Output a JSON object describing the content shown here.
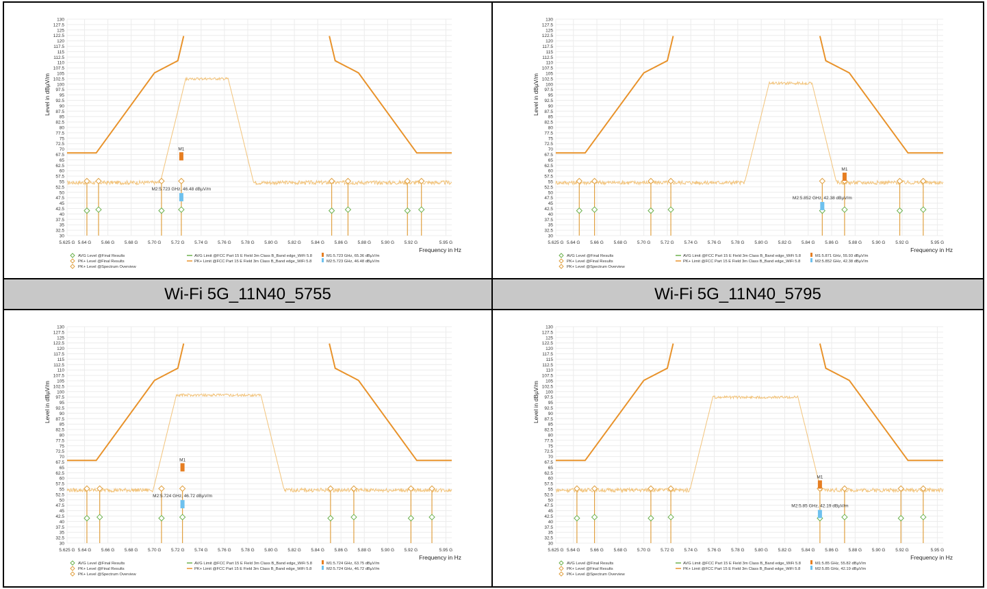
{
  "captions": [
    "Wi-Fi 5G_11N40_5755",
    "Wi-Fi 5G_11N40_5795"
  ],
  "common": {
    "ylabel": "Level in dBµV/m",
    "xlabel": "Frequency in Hz",
    "yticks": [
      "30",
      "32.5",
      "35",
      "37.5",
      "40",
      "42.5",
      "45",
      "47.5",
      "50",
      "52.5",
      "55",
      "57.5",
      "60",
      "62.5",
      "65",
      "67.5",
      "70",
      "72.5",
      "75",
      "77.5",
      "80",
      "82.5",
      "85",
      "87.5",
      "90",
      "92.5",
      "95",
      "97.5",
      "100",
      "102.5",
      "105",
      "107.5",
      "110",
      "112.5",
      "115",
      "117.5",
      "120",
      "122.5",
      "125",
      "127.5",
      "130"
    ],
    "xticks": [
      "5.625 G",
      "5.64 G",
      "5.66 G",
      "5.68 G",
      "5.70 G",
      "5.72 G",
      "5.74 G",
      "5.76 G",
      "5.78 G",
      "5.80 G",
      "5.82 G",
      "5.84 G",
      "5.86 G",
      "5.88 G",
      "5.90 G",
      "5.92 G",
      "5.95 G"
    ],
    "legend_left": [
      "AVG Level @Final Results",
      "PK+ Level @Final Results",
      "PK+ Level @Spectrum Overview"
    ],
    "legend_mid": [
      "AVG Limit @FCC Part 15 E Field 3m Class B_Band edge_WiFi 5.8",
      "PK+ Limit @FCC Part 15 E Field 3m Class B_Band edge_WiFi 5.8"
    ],
    "colors": {
      "limit": "#e8922a",
      "trace": "#f2c37a",
      "marker_m1": "#e67e22",
      "marker_m2": "#6ec1ee",
      "avg": "#6ab04c",
      "stem": "#e0a040"
    }
  },
  "chart_data": [
    {
      "type": "line",
      "xlabel": "Frequency in Hz",
      "ylabel": "Level in dBµV/m",
      "xlim": [
        5.625,
        5.955
      ],
      "ylim": [
        30,
        130
      ],
      "limit": {
        "x": [
          5.625,
          5.65,
          5.7,
          5.72,
          5.725,
          null,
          5.85,
          5.855,
          5.875,
          5.925,
          5.955
        ],
        "y": [
          68.2,
          68.2,
          105.2,
          110.8,
          122.2,
          null,
          122.2,
          110.8,
          105.2,
          68.2,
          68.2
        ]
      },
      "signal": {
        "center": 5.745,
        "halfwidth": 0.018,
        "top": 103,
        "floor": 54.5
      },
      "markers": [
        {
          "id": "M1",
          "x": 5.723,
          "y": 65.36,
          "color": "m1"
        },
        {
          "id": "M2",
          "x": 5.723,
          "y": 46.48,
          "color": "m2",
          "label": "M2:5.723 GHz, 46.48 dBµV/m"
        }
      ],
      "finals_x": [
        5.642,
        5.652,
        5.706,
        5.723,
        5.852,
        5.866,
        5.917,
        5.929
      ],
      "legend_markers": [
        "M1:5.723 GHz, 65.36 dBµV/m",
        "M2:5.723 GHz, 46.48 dBµV/m"
      ]
    },
    {
      "type": "line",
      "xlabel": "Frequency in Hz",
      "ylabel": "Level in dBµV/m",
      "xlim": [
        5.625,
        5.955
      ],
      "ylim": [
        30,
        130
      ],
      "limit": {
        "x": [
          5.625,
          5.65,
          5.7,
          5.72,
          5.725,
          null,
          5.85,
          5.855,
          5.875,
          5.925,
          5.955
        ],
        "y": [
          68.2,
          68.2,
          105.2,
          110.8,
          122.2,
          null,
          122.2,
          110.8,
          105.2,
          68.2,
          68.2
        ]
      },
      "signal": {
        "center": 5.825,
        "halfwidth": 0.018,
        "top": 101,
        "floor": 54.5
      },
      "markers": [
        {
          "id": "M1",
          "x": 5.871,
          "y": 55.93,
          "color": "m1"
        },
        {
          "id": "M2",
          "x": 5.852,
          "y": 42.38,
          "color": "m2",
          "label": "M2:5.852 GHz, 42.38 dBµV/m"
        }
      ],
      "finals_x": [
        5.645,
        5.658,
        5.706,
        5.723,
        5.852,
        5.871,
        5.918,
        5.938
      ],
      "legend_markers": [
        "M1:5.871 GHz, 55.93 dBµV/m",
        "M2:5.852 GHz, 42.38 dBµV/m"
      ]
    },
    {
      "type": "line",
      "xlabel": "Frequency in Hz",
      "ylabel": "Level in dBµV/m",
      "xlim": [
        5.625,
        5.955
      ],
      "ylim": [
        30,
        130
      ],
      "limit": {
        "x": [
          5.625,
          5.65,
          5.7,
          5.72,
          5.725,
          null,
          5.85,
          5.855,
          5.875,
          5.925,
          5.955
        ],
        "y": [
          68.2,
          68.2,
          105.2,
          110.8,
          122.2,
          null,
          122.2,
          110.8,
          105.2,
          68.2,
          68.2
        ]
      },
      "signal": {
        "center": 5.755,
        "halfwidth": 0.036,
        "top": 99,
        "floor": 54.5
      },
      "markers": [
        {
          "id": "M1",
          "x": 5.724,
          "y": 63.75,
          "color": "m1"
        },
        {
          "id": "M2",
          "x": 5.724,
          "y": 46.72,
          "color": "m2",
          "label": "M2:5.724 GHz, 46.72 dBµV/m"
        }
      ],
      "finals_x": [
        5.642,
        5.653,
        5.706,
        5.724,
        5.851,
        5.871,
        5.92,
        5.938
      ],
      "legend_markers": [
        "M1:5.724 GHz, 63.75 dBµV/m",
        "M2:5.724 GHz, 46.72 dBµV/m"
      ]
    },
    {
      "type": "line",
      "xlabel": "Frequency in Hz",
      "ylabel": "Level in dBµV/m",
      "xlim": [
        5.625,
        5.955
      ],
      "ylim": [
        30,
        130
      ],
      "limit": {
        "x": [
          5.625,
          5.65,
          5.7,
          5.72,
          5.725,
          null,
          5.85,
          5.855,
          5.875,
          5.925,
          5.955
        ],
        "y": [
          68.2,
          68.2,
          105.2,
          110.8,
          122.2,
          null,
          122.2,
          110.8,
          105.2,
          68.2,
          68.2
        ]
      },
      "signal": {
        "center": 5.795,
        "halfwidth": 0.036,
        "top": 98,
        "floor": 54.5
      },
      "markers": [
        {
          "id": "M1",
          "x": 5.85,
          "y": 55.82,
          "color": "m1"
        },
        {
          "id": "M2",
          "x": 5.85,
          "y": 42.19,
          "color": "m2",
          "label": "M2:5.85 GHz, 42.19 dBµV/m"
        }
      ],
      "finals_x": [
        5.643,
        5.658,
        5.706,
        5.723,
        5.85,
        5.871,
        5.919,
        5.938
      ],
      "legend_markers": [
        "M1:5.85 GHz, 55.82 dBµV/m",
        "M2:5.85 GHz, 42.19 dBµV/m"
      ]
    }
  ]
}
